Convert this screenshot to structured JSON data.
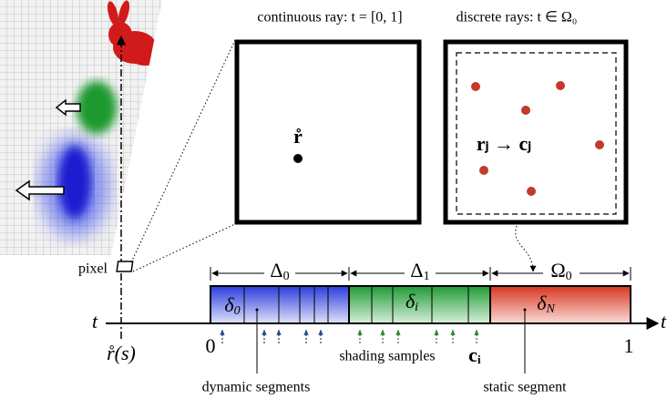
{
  "panels": {
    "continuous": {
      "title": "continuous ray: t = [0, 1]",
      "ray_label": "r̊"
    },
    "discrete": {
      "title": "discrete rays: t ∈ Ω₀",
      "mapping": "rⱼ → cⱼ"
    }
  },
  "labels": {
    "pixel": "pixel",
    "t_left": "t",
    "t_right": "t",
    "ray": "r̊(s)",
    "start": "0",
    "end": "1",
    "shading_samples": "shading samples",
    "sample": "cᵢ",
    "dynamic": "dynamic segments",
    "static": "static segment"
  },
  "intervals": [
    {
      "base": "Δ",
      "sub": "0"
    },
    {
      "base": "Δ",
      "sub": "1"
    },
    {
      "base": "Ω",
      "sub": "0"
    }
  ],
  "segments": [
    {
      "base": "δ",
      "sub": "0"
    },
    {
      "base": "δ",
      "sub": "i"
    },
    {
      "base": "δ",
      "sub": "N"
    }
  ]
}
